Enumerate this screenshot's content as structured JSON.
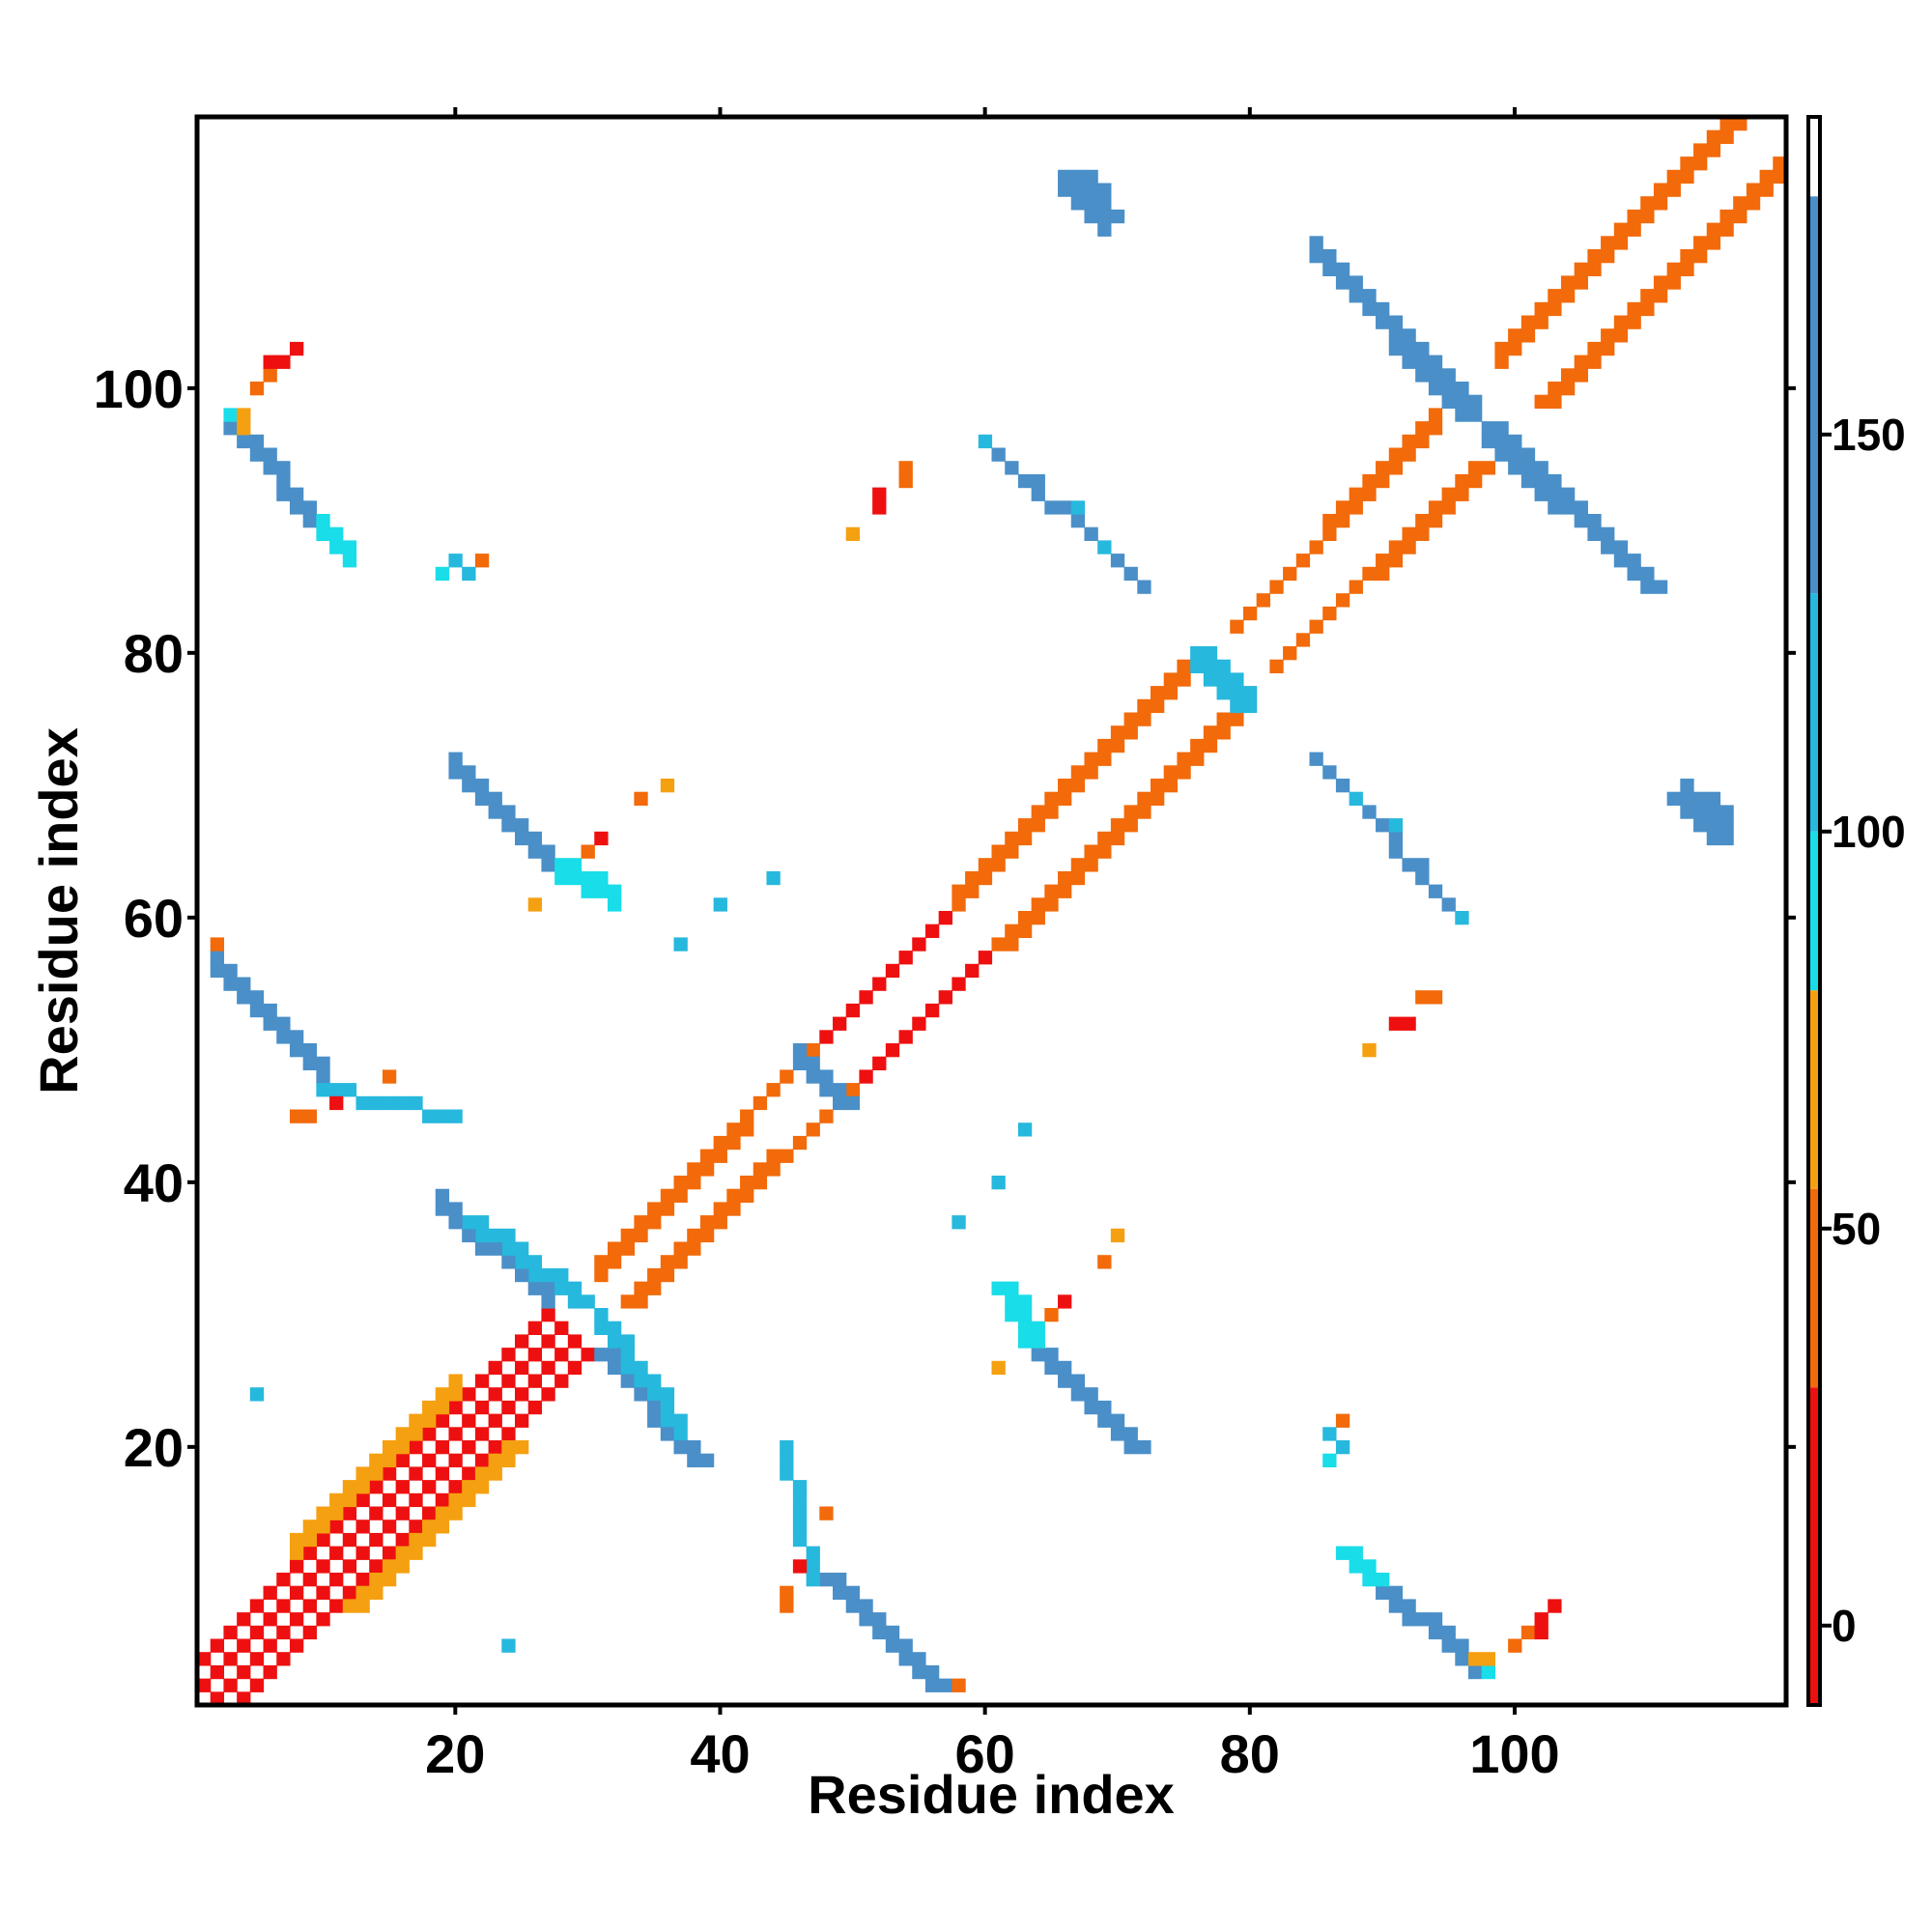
{
  "chart_data": {
    "type": "heatmap",
    "title": "",
    "xlabel": "Residue index",
    "ylabel": "Residue index",
    "xlim": [
      0.5,
      120.5
    ],
    "ylim": [
      0.5,
      120.5
    ],
    "x_ticks": [
      20,
      40,
      60,
      80,
      100
    ],
    "y_ticks": [
      20,
      40,
      60,
      80,
      100
    ],
    "x_tick_labels": [
      "20",
      "40",
      "60",
      "80",
      "100"
    ],
    "y_tick_labels": [
      "20",
      "40",
      "60",
      "80",
      "100"
    ],
    "grid": false,
    "colorbar": {
      "range": [
        -10,
        190
      ],
      "ticks": [
        0,
        50,
        100,
        150
      ],
      "tick_labels": [
        "0",
        "50",
        "100",
        "150"
      ],
      "bins": [
        {
          "from": -10,
          "to": 30,
          "color": "#ee1010"
        },
        {
          "from": 30,
          "to": 55,
          "color": "#f26a0a"
        },
        {
          "from": 55,
          "to": 80,
          "color": "#f5a011"
        },
        {
          "from": 80,
          "to": 100,
          "color": "#19dde8"
        },
        {
          "from": 100,
          "to": 130,
          "color": "#27b8dd"
        },
        {
          "from": 130,
          "to": 180,
          "color": "#4a8fc8"
        },
        {
          "from": 180,
          "to": 190,
          "color": "#ffffff"
        }
      ]
    },
    "segments": [
      {
        "from": [
          1,
          2
        ],
        "to": [
          28,
          29
        ],
        "width": 1,
        "value": 10,
        "sym": true
      },
      {
        "from": [
          1,
          4
        ],
        "to": [
          27,
          30
        ],
        "width": 1,
        "value": 20,
        "sym": true
      },
      {
        "from": [
          8,
          12
        ],
        "to": [
          20,
          24
        ],
        "width": 2,
        "value": 60,
        "sym": true
      },
      {
        "from": [
          31,
          33
        ],
        "to": [
          42,
          44
        ],
        "width": 2,
        "value": 45,
        "sym": true
      },
      {
        "from": [
          42,
          45
        ],
        "to": [
          48,
          51
        ],
        "width": 1,
        "value": 50,
        "sym": true
      },
      {
        "from": [
          48,
          51
        ],
        "to": [
          58,
          61
        ],
        "width": 1,
        "value": 12,
        "sym": true
      },
      {
        "from": [
          58,
          61
        ],
        "to": [
          76,
          79
        ],
        "width": 2,
        "value": 45,
        "sym": true
      },
      {
        "from": [
          79,
          82
        ],
        "to": [
          86,
          89
        ],
        "width": 1,
        "value": 45,
        "sym": true
      },
      {
        "from": [
          86,
          89
        ],
        "to": [
          94,
          97
        ],
        "width": 2,
        "value": 30,
        "sym": true
      },
      {
        "from": [
          99,
          102
        ],
        "to": [
          117,
          120
        ],
        "width": 2,
        "value": 35,
        "sym": true
      },
      {
        "from": [
          27,
          31
        ],
        "to": [
          19,
          38
        ],
        "width": 2,
        "value": 145,
        "sym": true
      },
      {
        "from": [
          31,
          29
        ],
        "to": [
          37,
          21
        ],
        "width": 2,
        "value": 115,
        "sym": true
      },
      {
        "from": [
          3,
          97
        ],
        "to": [
          10,
          89
        ],
        "width": 2,
        "value": 145,
        "sym": true
      },
      {
        "from": [
          10,
          89
        ],
        "to": [
          12,
          87
        ],
        "width": 2,
        "value": 92,
        "sym": true
      },
      {
        "from": [
          2,
          56
        ],
        "to": [
          10,
          48
        ],
        "width": 2,
        "value": 150,
        "sym": true
      },
      {
        "from": [
          10,
          47
        ],
        "to": [
          20,
          45
        ],
        "width": 1,
        "value": 125,
        "sym": true
      },
      {
        "from": [
          20,
          71
        ],
        "to": [
          28,
          63
        ],
        "width": 2,
        "value": 145,
        "sym": true
      },
      {
        "from": [
          28,
          63
        ],
        "to": [
          32,
          61
        ],
        "width": 2,
        "value": 95,
        "sym": true
      },
      {
        "from": [
          66,
          115
        ],
        "to": [
          69,
          112
        ],
        "width": 2,
        "value": 155,
        "sym": true
      },
      {
        "from": [
          85,
          110
        ],
        "to": [
          97,
          98
        ],
        "width": 2,
        "value": 145,
        "sym": true
      },
      {
        "from": [
          98,
          96
        ],
        "to": [
          110,
          85
        ],
        "width": 2,
        "value": 145,
        "sym": true
      },
      {
        "from": [
          76,
          79
        ],
        "to": [
          80,
          76
        ],
        "width": 2,
        "value": 110,
        "sym": true
      },
      {
        "from": [
          46,
          49
        ],
        "to": [
          49,
          46
        ],
        "width": 2,
        "value": 140,
        "sym": true
      },
      {
        "from": [
          85,
          72
        ],
        "to": [
          96,
          60
        ],
        "width": 1,
        "value": 135,
        "sym": true
      },
      {
        "from": [
          113,
          69
        ],
        "to": [
          116,
          67
        ],
        "width": 2,
        "value": 150,
        "sym": true
      }
    ],
    "cells": [
      {
        "x": 6,
        "y": 101,
        "value": 45,
        "sym": true
      },
      {
        "x": 7,
        "y": 102,
        "value": 20,
        "sym": true
      },
      {
        "x": 8,
        "y": 103,
        "value": 20,
        "sym": true
      },
      {
        "x": 3,
        "y": 98,
        "value": 90,
        "sym": true
      },
      {
        "x": 4,
        "y": 98,
        "value": 70,
        "sym": true
      },
      {
        "x": 19,
        "y": 86,
        "value": 95,
        "sym": true
      },
      {
        "x": 20,
        "y": 87,
        "value": 110,
        "sym": true
      },
      {
        "x": 22,
        "y": 87,
        "value": 45,
        "sym": true
      },
      {
        "x": 8,
        "y": 45,
        "value": 45,
        "sym": true
      },
      {
        "x": 9,
        "y": 45,
        "value": 45,
        "sym": true
      },
      {
        "x": 11,
        "y": 46,
        "value": 20,
        "sym": true
      },
      {
        "x": 15,
        "y": 48,
        "value": 45,
        "sym": true
      },
      {
        "x": 26,
        "y": 61,
        "value": 60,
        "sym": true
      },
      {
        "x": 30,
        "y": 65,
        "value": 45,
        "sym": true
      },
      {
        "x": 31,
        "y": 66,
        "value": 20,
        "sym": true
      },
      {
        "x": 34,
        "y": 69,
        "value": 45,
        "sym": true
      },
      {
        "x": 36,
        "y": 70,
        "value": 60,
        "sym": true
      },
      {
        "x": 50,
        "y": 89,
        "value": 65,
        "sym": true
      },
      {
        "x": 52,
        "y": 91,
        "value": 20,
        "sym": true
      },
      {
        "x": 54,
        "y": 93,
        "value": 45,
        "sym": true
      },
      {
        "x": 60,
        "y": 96,
        "value": 125,
        "sym": true
      },
      {
        "x": 64,
        "y": 93,
        "value": 130,
        "sym": true
      },
      {
        "x": 67,
        "y": 91,
        "value": 125,
        "sym": true
      },
      {
        "x": 69,
        "y": 88,
        "value": 110,
        "sym": true
      },
      {
        "x": 72,
        "y": 85,
        "value": 140,
        "sym": true
      },
      {
        "x": 5,
        "y": 24,
        "value": 125,
        "sym": true
      },
      {
        "x": 24,
        "y": 5,
        "value": 125,
        "sym": true
      },
      {
        "x": 37,
        "y": 58,
        "value": 120,
        "sym": true
      },
      {
        "x": 40,
        "y": 61,
        "value": 120,
        "sym": true
      },
      {
        "x": 44,
        "y": 63,
        "value": 120,
        "sym": true
      },
      {
        "x": 86,
        "y": 21,
        "value": 110,
        "sym": true
      },
      {
        "x": 87,
        "y": 22,
        "value": 45,
        "sym": true
      },
      {
        "x": 100,
        "y": 5,
        "value": 45,
        "sym": true
      },
      {
        "x": 102,
        "y": 6,
        "value": 20,
        "sym": true
      },
      {
        "x": 97,
        "y": 4,
        "value": 70,
        "sym": true
      },
      {
        "x": 58,
        "y": 2,
        "value": 45,
        "sym": true
      },
      {
        "x": 89,
        "y": 50,
        "value": 65,
        "sym": true
      },
      {
        "x": 92,
        "y": 52,
        "value": 20,
        "sym": true
      },
      {
        "x": 94,
        "y": 54,
        "value": 45,
        "sym": true
      }
    ]
  }
}
